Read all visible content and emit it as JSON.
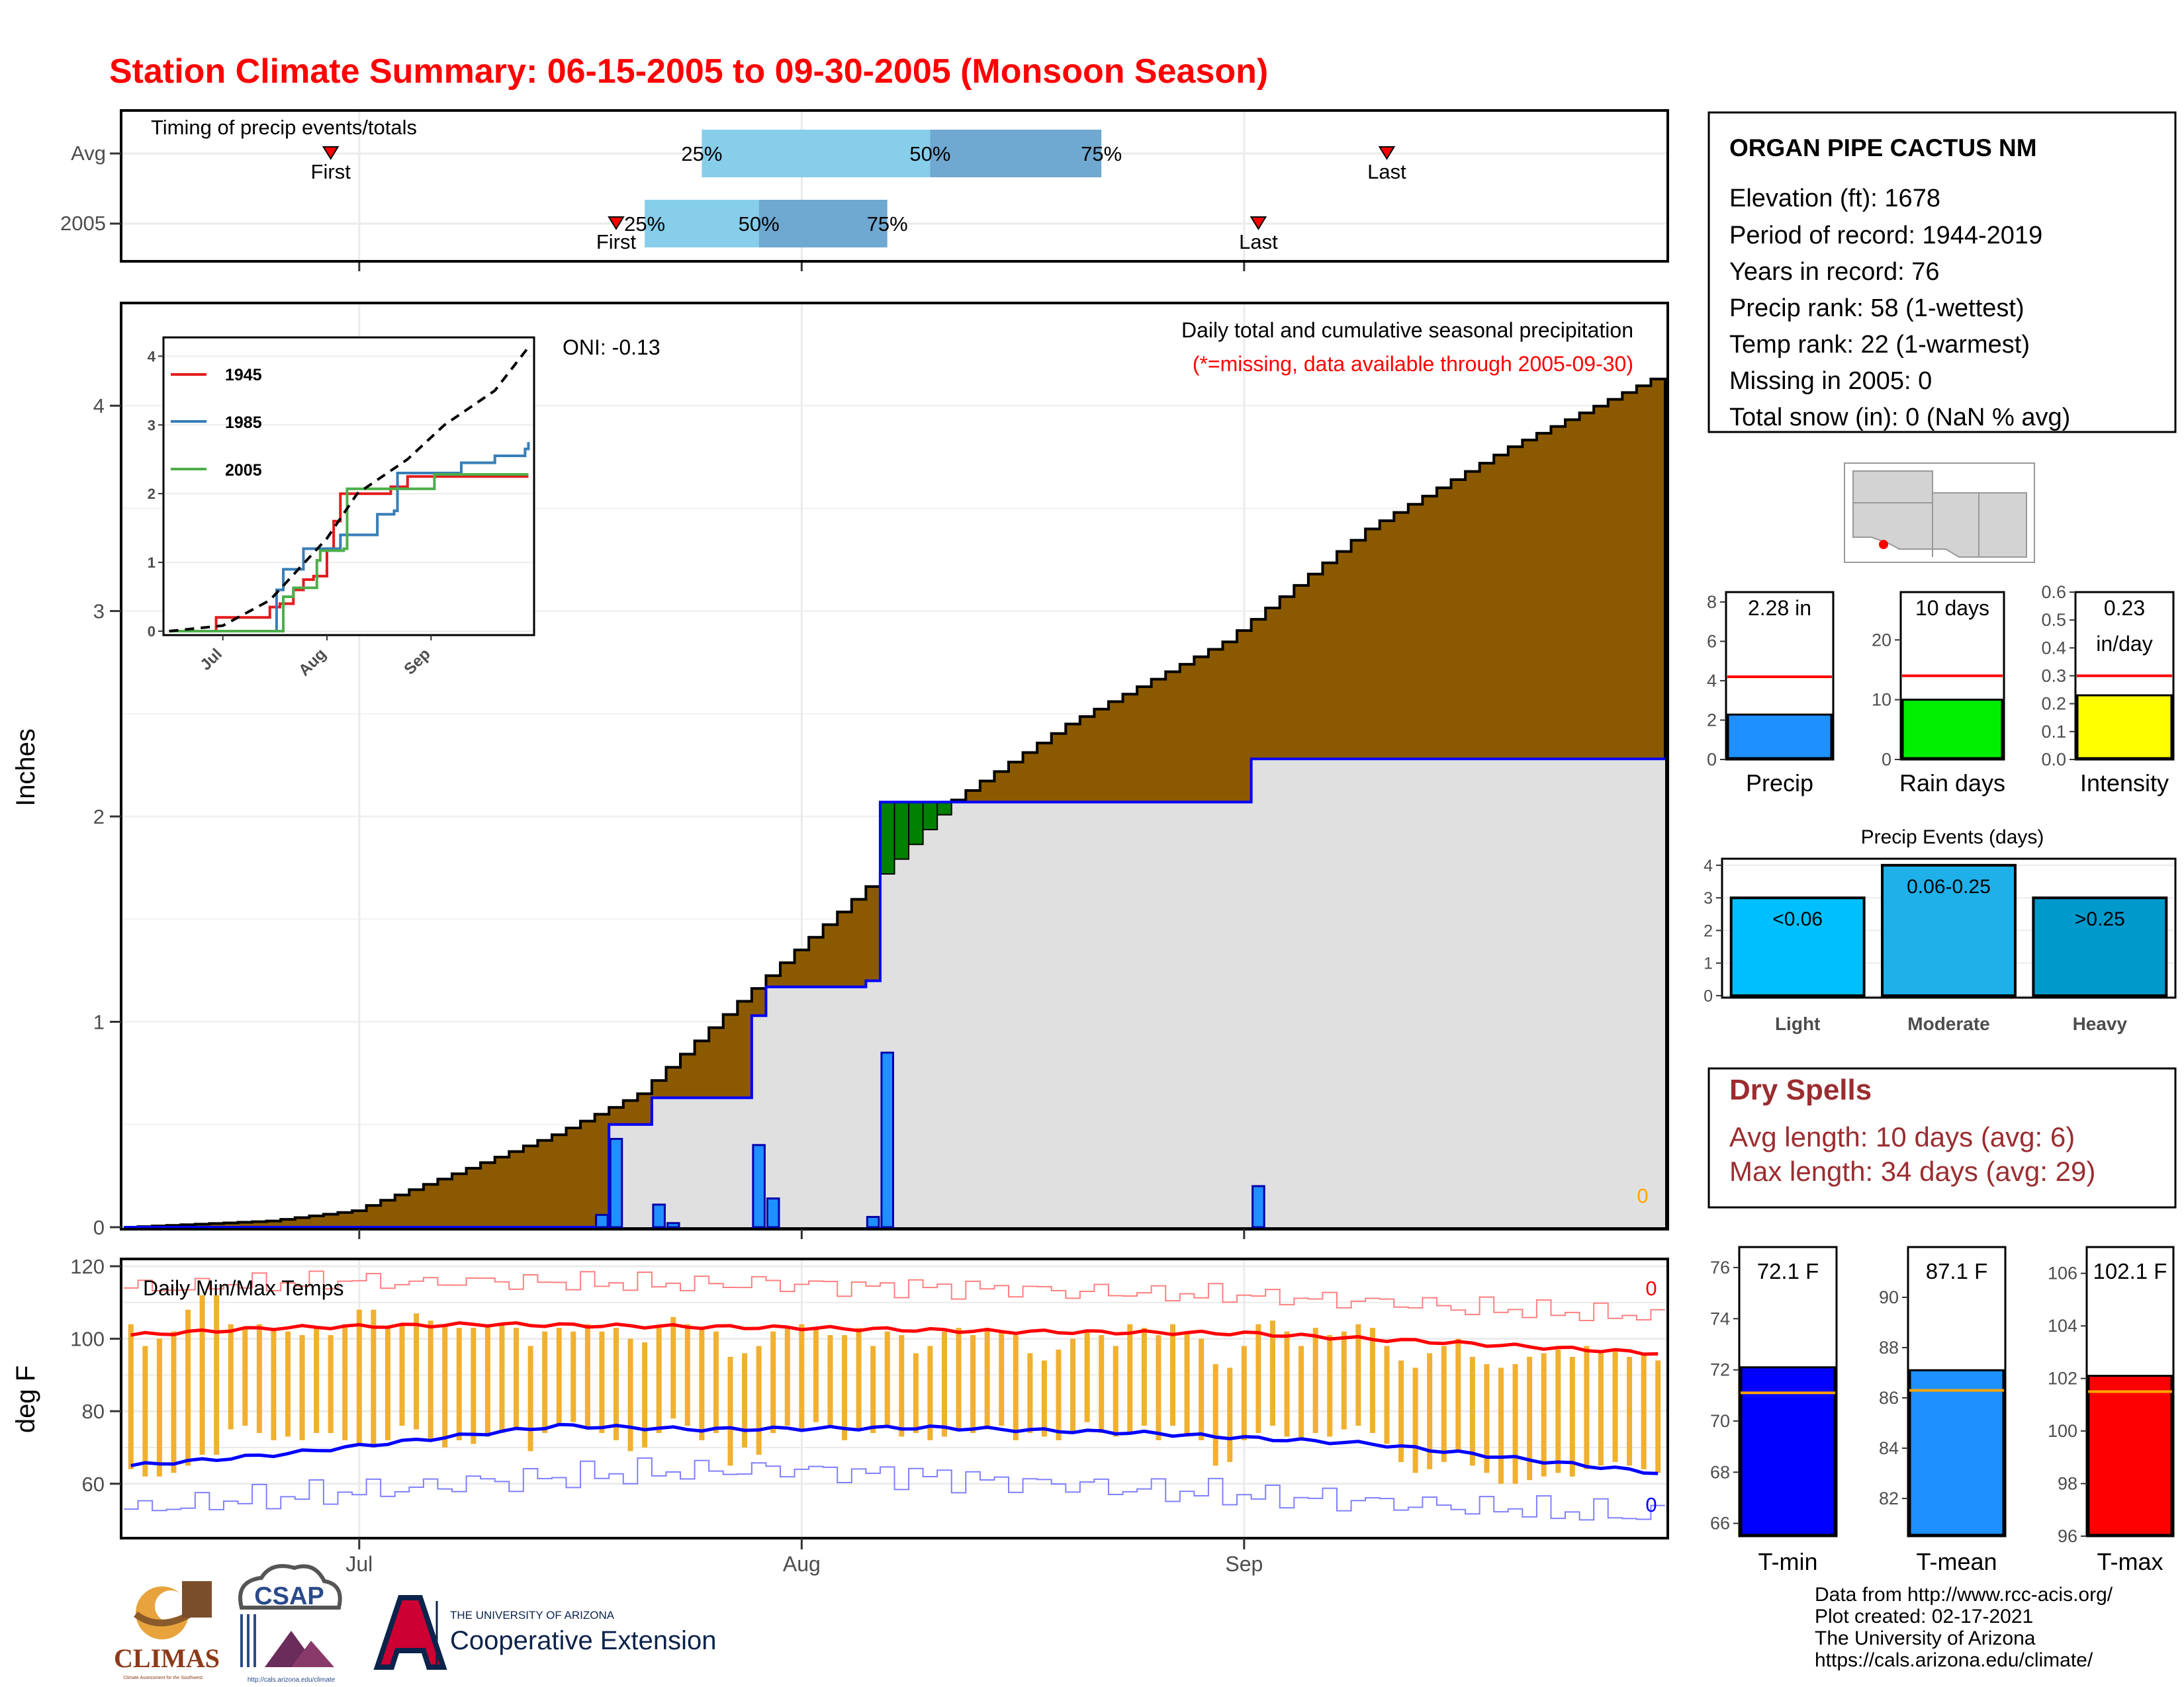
{
  "title": "Station Climate Summary: 06-15-2005 to 09-30-2005 (Monsoon Season)",
  "colors": {
    "title": "#ff0000",
    "cum_avg_fill": "#8b5a00",
    "cum_year_fill": "#e0e0e0",
    "surplus_fill": "#008000",
    "daily_bar": "#1e90ff",
    "tmax_line": "#ff0000",
    "tmin_line": "#0000ff",
    "temp_bar": "#f0b030",
    "dry_spell_text": "#9b2d30",
    "q_light": "#87ceeb",
    "q_dark": "#6fa8d0"
  },
  "timing_panel": {
    "title": "Timing of precip events/totals",
    "rows": [
      {
        "label": "Avg",
        "first_label": "First",
        "last_label": "Last",
        "q25": "25%",
        "q50": "50%",
        "q75": "75%",
        "first": "2005-06-29",
        "last": "2005-09-11",
        "p25": "2005-07-25",
        "p50": "2005-08-10",
        "p75": "2005-08-22"
      },
      {
        "label": "2005",
        "first_label": "First",
        "last_label": "Last",
        "q25": "25%",
        "q50": "50%",
        "q75": "75%",
        "first": "2005-07-19",
        "last": "2005-09-02",
        "p25": "2005-07-21",
        "p50": "2005-07-29",
        "p75": "2005-08-07"
      }
    ]
  },
  "precip_panel": {
    "ylabel": "Inches",
    "subtitle": "Daily total and cumulative seasonal precipitation",
    "missing_note": "(*=missing, data available through 2005-09-30)",
    "oni": "ONI: -0.13",
    "missing_count": "0",
    "yticks": [
      "0",
      "1",
      "2",
      "3",
      "4"
    ]
  },
  "inset": {
    "yticks": [
      "0",
      "1",
      "2",
      "3",
      "4"
    ],
    "xticks": [
      "Jul",
      "Aug",
      "Sep"
    ],
    "legend": [
      "1945",
      "1985",
      "2005"
    ],
    "series_colors": [
      "#e41a1c",
      "#377eb8",
      "#4daf4a"
    ]
  },
  "temp_panel": {
    "title": "Daily Min/Max Temps",
    "ylabel": "deg F",
    "yticks": [
      "60",
      "80",
      "100",
      "120"
    ],
    "missing_max": "0",
    "missing_min": "0"
  },
  "x_axis": {
    "ticks": [
      "Jul",
      "Aug",
      "Sep"
    ]
  },
  "station": {
    "name": "ORGAN PIPE CACTUS NM",
    "lines": [
      "Elevation (ft): 1678",
      "Period of record: 1944-2019",
      "Years in record: 76",
      "Precip rank: 58 (1-wettest)",
      "Temp rank: 22 (1-warmest)",
      "Missing in 2005: 0",
      "Total snow (in): 0 (NaN % avg)"
    ]
  },
  "summary_bars": [
    {
      "label": "Precip",
      "value_text": "2.28 in",
      "value": 2.28,
      "avg": 4.2,
      "ymax": 8.5,
      "ticks": [
        "0",
        "2",
        "4",
        "6",
        "8"
      ],
      "color": "#1e90ff"
    },
    {
      "label": "Rain days",
      "value_text": "10 days",
      "value": 10,
      "avg": 14,
      "ymax": 28,
      "ticks": [
        "0",
        "10",
        "20"
      ],
      "color": "#00ee00"
    },
    {
      "label": "Intensity",
      "value_text": "0.23",
      "value_text2": "in/day",
      "value": 0.23,
      "avg": 0.3,
      "ymax": 0.6,
      "ticks": [
        "0.0",
        "0.1",
        "0.2",
        "0.3",
        "0.4",
        "0.5",
        "0.6"
      ],
      "color": "#ffff00"
    }
  ],
  "precip_events": {
    "title": "Precip Events (days)",
    "yticks": [
      "0",
      "1",
      "2",
      "3",
      "4"
    ],
    "bars": [
      {
        "label": "Light",
        "inner": "<0.06",
        "value": 3,
        "color": "#00bfff"
      },
      {
        "label": "Moderate",
        "inner": "0.06-0.25",
        "value": 4,
        "color": "#1fb0ea"
      },
      {
        "label": "Heavy",
        "inner": ">0.25",
        "value": 3,
        "color": "#0099cc"
      }
    ]
  },
  "dry_spells": {
    "title": "Dry Spells",
    "avg_line": "Avg length: 10 days (avg: 6)",
    "max_line": "Max length: 34 days (avg: 29)"
  },
  "temp_bars": [
    {
      "label": "T-min",
      "value_text": "72.1 F",
      "value": 72.1,
      "avg": 71.1,
      "ymin": 65.5,
      "ymax": 76.8,
      "ticks": [
        "66",
        "68",
        "70",
        "72",
        "74",
        "76"
      ],
      "color": "#0000ff"
    },
    {
      "label": "T-mean",
      "value_text": "87.1 F",
      "value": 87.1,
      "avg": 86.3,
      "ymin": 80.5,
      "ymax": 92.0,
      "ticks": [
        "82",
        "84",
        "86",
        "88",
        "90"
      ],
      "color": "#1e90ff"
    },
    {
      "label": "T-max",
      "value_text": "102.1 F",
      "value": 102.1,
      "avg": 101.5,
      "ymin": 96.0,
      "ymax": 107.0,
      "ticks": [
        "96",
        "98",
        "100",
        "102",
        "104",
        "106"
      ],
      "color": "#ff0000"
    }
  ],
  "credits": [
    "Data from http://www.rcc-acis.org/",
    "Plot created: 02-17-2021",
    "The University of Arizona",
    "https://cals.arizona.edu/climate/"
  ],
  "logos": {
    "climas": "CLIMAS",
    "climas_sub": "Climate Assessment for the Southwest",
    "csap": "CSAP",
    "csap_sub": "http://cals.arizona.edu/climate",
    "ua_line1": "THE UNIVERSITY OF ARIZONA",
    "ua_line2": "Cooperative Extension"
  },
  "chart_data": {
    "type": "area",
    "dates": {
      "start": "2005-06-15",
      "end": "2005-09-30"
    },
    "avg_cumulative_inches_at": [
      {
        "date": "2005-06-15",
        "value": 0.0
      },
      {
        "date": "2005-06-25",
        "value": 0.03
      },
      {
        "date": "2005-07-01",
        "value": 0.08
      },
      {
        "date": "2005-07-08",
        "value": 0.26
      },
      {
        "date": "2005-07-15",
        "value": 0.45
      },
      {
        "date": "2005-07-21",
        "value": 0.65
      },
      {
        "date": "2005-07-28",
        "value": 1.1
      },
      {
        "date": "2005-08-01",
        "value": 1.35
      },
      {
        "date": "2005-08-07",
        "value": 1.72
      },
      {
        "date": "2005-08-12",
        "value": 2.08
      },
      {
        "date": "2005-08-20",
        "value": 2.45
      },
      {
        "date": "2005-08-31",
        "value": 2.85
      },
      {
        "date": "2005-09-10",
        "value": 3.4
      },
      {
        "date": "2005-09-20",
        "value": 3.8
      },
      {
        "date": "2005-09-30",
        "value": 4.13
      }
    ],
    "year_cumulative_inches_at": [
      {
        "date": "2005-06-15",
        "value": 0.0
      },
      {
        "date": "2005-07-18",
        "value": 0.0
      },
      {
        "date": "2005-07-19",
        "value": 0.5
      },
      {
        "date": "2005-07-22",
        "value": 0.63
      },
      {
        "date": "2005-07-29",
        "value": 1.03
      },
      {
        "date": "2005-07-30",
        "value": 1.17
      },
      {
        "date": "2005-08-06",
        "value": 1.2
      },
      {
        "date": "2005-08-07",
        "value": 2.07
      },
      {
        "date": "2005-09-02",
        "value": 2.28
      },
      {
        "date": "2005-09-30",
        "value": 2.28
      }
    ],
    "daily_precip_inches": [
      {
        "date": "2005-07-18",
        "value": 0.06
      },
      {
        "date": "2005-07-19",
        "value": 0.43
      },
      {
        "date": "2005-07-22",
        "value": 0.11
      },
      {
        "date": "2005-07-23",
        "value": 0.02
      },
      {
        "date": "2005-07-29",
        "value": 0.4
      },
      {
        "date": "2005-07-30",
        "value": 0.14
      },
      {
        "date": "2005-08-06",
        "value": 0.05
      },
      {
        "date": "2005-08-07",
        "value": 0.85
      },
      {
        "date": "2005-09-02",
        "value": 0.2
      }
    ],
    "inset_series": [
      {
        "name": "1945",
        "points": [
          [
            "2005-06-15",
            0
          ],
          [
            "2005-06-28",
            0
          ],
          [
            "2005-06-29",
            0.2
          ],
          [
            "2005-07-14",
            0.2
          ],
          [
            "2005-07-15",
            0.35
          ],
          [
            "2005-07-18",
            0.4
          ],
          [
            "2005-07-22",
            0.6
          ],
          [
            "2005-07-25",
            0.75
          ],
          [
            "2005-07-28",
            0.8
          ],
          [
            "2005-08-01",
            1.2
          ],
          [
            "2005-08-03",
            1.6
          ],
          [
            "2005-08-05",
            2.0
          ],
          [
            "2005-08-10",
            2.0
          ],
          [
            "2005-08-20",
            2.1
          ],
          [
            "2005-08-25",
            2.25
          ],
          [
            "2005-09-30",
            2.25
          ]
        ]
      },
      {
        "name": "1985",
        "points": [
          [
            "2005-06-15",
            0
          ],
          [
            "2005-07-16",
            0
          ],
          [
            "2005-07-17",
            0.6
          ],
          [
            "2005-07-19",
            0.9
          ],
          [
            "2005-07-24",
            0.9
          ],
          [
            "2005-07-25",
            1.2
          ],
          [
            "2005-08-05",
            1.4
          ],
          [
            "2005-08-10",
            1.4
          ],
          [
            "2005-08-16",
            1.7
          ],
          [
            "2005-08-21",
            1.75
          ],
          [
            "2005-08-22",
            2.3
          ],
          [
            "2005-09-10",
            2.45
          ],
          [
            "2005-09-20",
            2.55
          ],
          [
            "2005-09-29",
            2.65
          ],
          [
            "2005-09-30",
            2.75
          ]
        ]
      },
      {
        "name": "2005",
        "points": [
          [
            "2005-06-15",
            0
          ],
          [
            "2005-07-18",
            0
          ],
          [
            "2005-07-19",
            0.5
          ],
          [
            "2005-07-22",
            0.63
          ],
          [
            "2005-07-29",
            1.03
          ],
          [
            "2005-07-30",
            1.17
          ],
          [
            "2005-08-06",
            1.2
          ],
          [
            "2005-08-07",
            2.07
          ],
          [
            "2005-09-02",
            2.28
          ],
          [
            "2005-09-30",
            2.28
          ]
        ]
      }
    ],
    "inset_avg_points": [
      [
        "2005-06-15",
        0
      ],
      [
        "2005-07-01",
        0.08
      ],
      [
        "2005-07-15",
        0.45
      ],
      [
        "2005-08-01",
        1.35
      ],
      [
        "2005-08-10",
        2.0
      ],
      [
        "2005-08-25",
        2.5
      ],
      [
        "2005-09-05",
        3.0
      ],
      [
        "2005-09-20",
        3.5
      ],
      [
        "2005-09-30",
        4.13
      ]
    ],
    "tmax_avg_f_at": [
      {
        "date": "2005-06-15",
        "value": 101
      },
      {
        "date": "2005-06-25",
        "value": 103
      },
      {
        "date": "2005-07-10",
        "value": 104
      },
      {
        "date": "2005-07-20",
        "value": 103.5
      },
      {
        "date": "2005-08-01",
        "value": 103
      },
      {
        "date": "2005-08-15",
        "value": 102
      },
      {
        "date": "2005-09-01",
        "value": 101.5
      },
      {
        "date": "2005-09-15",
        "value": 99
      },
      {
        "date": "2005-09-30",
        "value": 96
      }
    ],
    "tmin_avg_f_at": [
      {
        "date": "2005-06-15",
        "value": 65
      },
      {
        "date": "2005-06-25",
        "value": 68
      },
      {
        "date": "2005-07-05",
        "value": 72
      },
      {
        "date": "2005-07-15",
        "value": 76
      },
      {
        "date": "2005-07-25",
        "value": 75
      },
      {
        "date": "2005-08-10",
        "value": 75.5
      },
      {
        "date": "2005-08-25",
        "value": 74
      },
      {
        "date": "2005-09-10",
        "value": 71
      },
      {
        "date": "2005-09-20",
        "value": 67
      },
      {
        "date": "2005-09-30",
        "value": 63
      }
    ],
    "record_max_f_at": [
      {
        "date": "2005-06-15",
        "value": 114
      },
      {
        "date": "2005-07-01",
        "value": 116
      },
      {
        "date": "2005-08-01",
        "value": 115
      },
      {
        "date": "2005-09-01",
        "value": 112
      },
      {
        "date": "2005-09-30",
        "value": 106
      }
    ],
    "record_min_f_at": [
      {
        "date": "2005-06-15",
        "value": 53
      },
      {
        "date": "2005-07-01",
        "value": 58
      },
      {
        "date": "2005-07-20",
        "value": 63
      },
      {
        "date": "2005-08-01",
        "value": 64
      },
      {
        "date": "2005-09-01",
        "value": 57
      },
      {
        "date": "2005-09-30",
        "value": 51
      }
    ],
    "daily_temps_f": [
      [
        64,
        104
      ],
      [
        62,
        98
      ],
      [
        62,
        100
      ],
      [
        63,
        102
      ],
      [
        65,
        108
      ],
      [
        68,
        112
      ],
      [
        68,
        112
      ],
      [
        75,
        104
      ],
      [
        76,
        103
      ],
      [
        74,
        104
      ],
      [
        72,
        103
      ],
      [
        73,
        102
      ],
      [
        72,
        101
      ],
      [
        74,
        103
      ],
      [
        74,
        101
      ],
      [
        72,
        104
      ],
      [
        71,
        108
      ],
      [
        70,
        108
      ],
      [
        72,
        103
      ],
      [
        76,
        104
      ],
      [
        75,
        107
      ],
      [
        72,
        105
      ],
      [
        70,
        104
      ],
      [
        72,
        103
      ],
      [
        71,
        103
      ],
      [
        73,
        104
      ],
      [
        74,
        104
      ],
      [
        75,
        103
      ],
      [
        69,
        98
      ],
      [
        74,
        102
      ],
      [
        76,
        103
      ],
      [
        77,
        102
      ],
      [
        75,
        104
      ],
      [
        74,
        102
      ],
      [
        72,
        103
      ],
      [
        69,
        100
      ],
      [
        70,
        99
      ],
      [
        74,
        103
      ],
      [
        78,
        106
      ],
      [
        76,
        104
      ],
      [
        72,
        103
      ],
      [
        74,
        102
      ],
      [
        65,
        95
      ],
      [
        70,
        96
      ],
      [
        68,
        98
      ],
      [
        74,
        102
      ],
      [
        76,
        103
      ],
      [
        75,
        104
      ],
      [
        77,
        103
      ],
      [
        76,
        101
      ],
      [
        72,
        101
      ],
      [
        75,
        103
      ],
      [
        74,
        98
      ],
      [
        76,
        102
      ],
      [
        73,
        101
      ],
      [
        74,
        96
      ],
      [
        72,
        98
      ],
      [
        73,
        102
      ],
      [
        75,
        103
      ],
      [
        74,
        101
      ],
      [
        75,
        103
      ],
      [
        76,
        102
      ],
      [
        72,
        101
      ],
      [
        74,
        96
      ],
      [
        73,
        94
      ],
      [
        72,
        97
      ],
      [
        74,
        100
      ],
      [
        77,
        102
      ],
      [
        74,
        101
      ],
      [
        73,
        98
      ],
      [
        74,
        104
      ],
      [
        76,
        103
      ],
      [
        72,
        101
      ],
      [
        76,
        104
      ],
      [
        73,
        102
      ],
      [
        72,
        100
      ],
      [
        65,
        93
      ],
      [
        66,
        92
      ],
      [
        72,
        98
      ],
      [
        74,
        104
      ],
      [
        76,
        105
      ],
      [
        73,
        102
      ],
      [
        72,
        98
      ],
      [
        74,
        103
      ],
      [
        73,
        101
      ],
      [
        75,
        102
      ],
      [
        76,
        104
      ],
      [
        74,
        103
      ],
      [
        71,
        98
      ],
      [
        66,
        94
      ],
      [
        63,
        92
      ],
      [
        64,
        96
      ],
      [
        66,
        98
      ],
      [
        69,
        100
      ],
      [
        65,
        95
      ],
      [
        63,
        93
      ],
      [
        60,
        92
      ],
      [
        60,
        93
      ],
      [
        61,
        95
      ],
      [
        62,
        96
      ],
      [
        63,
        97
      ],
      [
        62,
        95
      ],
      [
        64,
        98
      ],
      [
        65,
        96
      ],
      [
        66,
        97
      ],
      [
        65,
        95
      ],
      [
        64,
        96
      ],
      [
        63,
        94
      ]
    ]
  }
}
